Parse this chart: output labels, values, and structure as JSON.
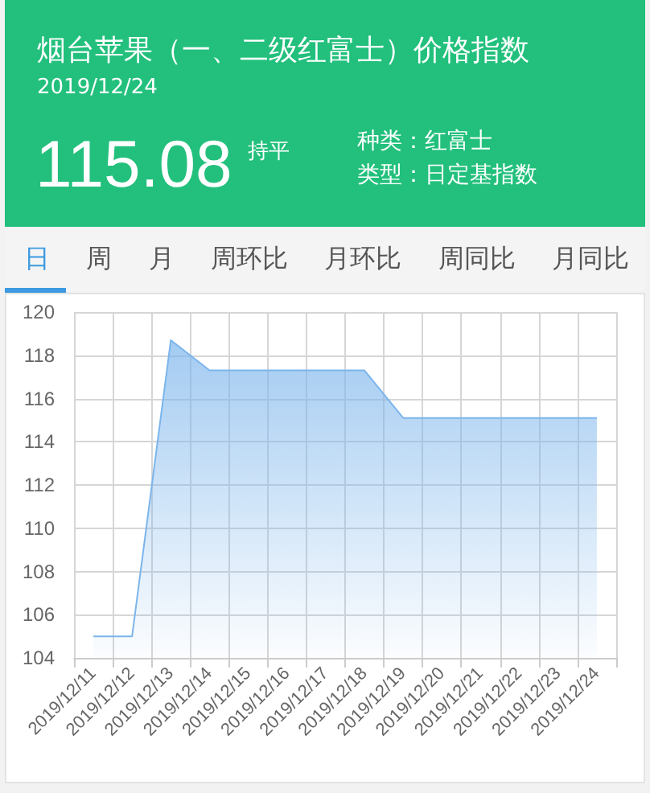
{
  "chart_data": {
    "type": "area",
    "title": "烟台苹果（一、二级红富士）价格指数",
    "subtitle": "2019/12/24",
    "annotations": [
      "115.08",
      "持平",
      "种类：红富士",
      "类型：日定基指数",
      "日",
      "周",
      "月",
      "周环比",
      "月环比",
      "周同比",
      "月同比"
    ],
    "categories": [
      "2019/12/11",
      "2019/12/12",
      "2019/12/13",
      "2019/12/14",
      "2019/12/15",
      "2019/12/16",
      "2019/12/17",
      "2019/12/18",
      "2019/12/19",
      "2019/12/20",
      "2019/12/21",
      "2019/12/22",
      "2019/12/23",
      "2019/12/24"
    ],
    "values": [
      105,
      105,
      118.7,
      117.3,
      117.3,
      117.3,
      117.3,
      117.3,
      115.1,
      115.1,
      115.1,
      115.1,
      115.1,
      115.1
    ],
    "color": "#7cb5ec",
    "ylim": [
      104,
      120
    ],
    "yticks": [
      104,
      106,
      108,
      110,
      112,
      114,
      116,
      118,
      120
    ],
    "grid": true
  }
}
